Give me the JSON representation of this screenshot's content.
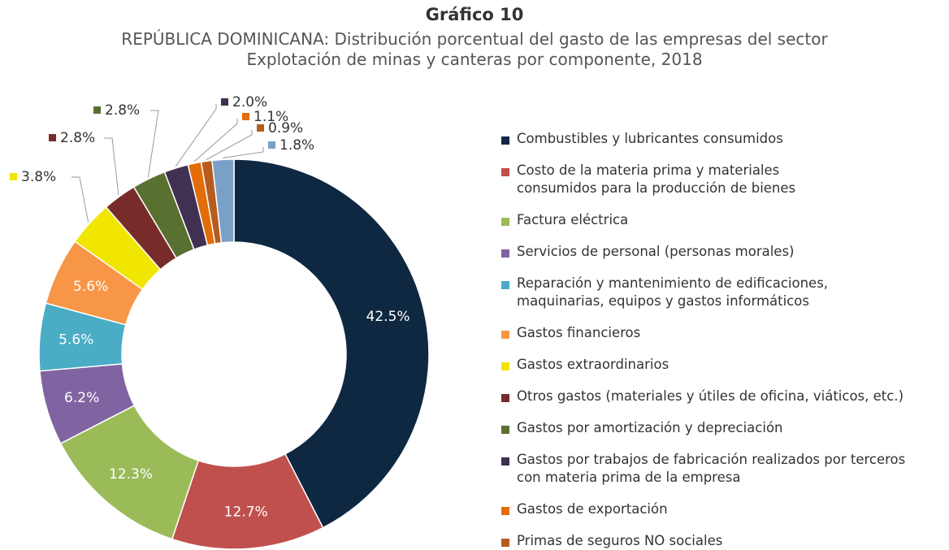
{
  "chart_data": {
    "type": "donut",
    "title": "Gráfico 10",
    "subtitle": "REPÚBLICA DOMINICANA: Distribución porcentual del gasto de las empresas del sector\nExplotación de minas y canteras por componente, 2018",
    "categories": [
      "Combustibles y lubricantes consumidos",
      "Costo de la materia prima y materiales\nconsumidos para la producción de bienes",
      "Factura eléctrica",
      "Servicios de personal (personas morales)",
      "Reparación y mantenimiento de edificaciones,\nmaquinarias, equipos y gastos informáticos",
      "Gastos financieros",
      "Gastos extraordinarios",
      "Otros gastos (materiales y útiles de oficina, viáticos, etc.)",
      "Gastos por amortización y depreciación",
      "Gastos por trabajos de fabricación realizados por terceros\ncon materia prima de la empresa",
      "Gastos de exportación",
      "Primas de seguros NO sociales",
      null
    ],
    "values": [
      42.5,
      12.7,
      12.3,
      6.2,
      5.6,
      5.6,
      3.8,
      2.8,
      2.8,
      2.0,
      1.1,
      0.9,
      1.8
    ],
    "value_labels": [
      "42.5%",
      "12.7%",
      "12.3%",
      "6.2%",
      "5.6%",
      "5.6%",
      "3.8%",
      "2.8%",
      "2.8%",
      "2.0%",
      "1.1%",
      "0.9%",
      "1.8%"
    ],
    "colors": [
      "#0e2841",
      "#c0504d",
      "#9bbb59",
      "#8064a2",
      "#4bacc6",
      "#f79646",
      "#f0e600",
      "#772c2a",
      "#5a7030",
      "#403152",
      "#e36c09",
      "#b65c1f",
      "#7ba0c8"
    ]
  }
}
